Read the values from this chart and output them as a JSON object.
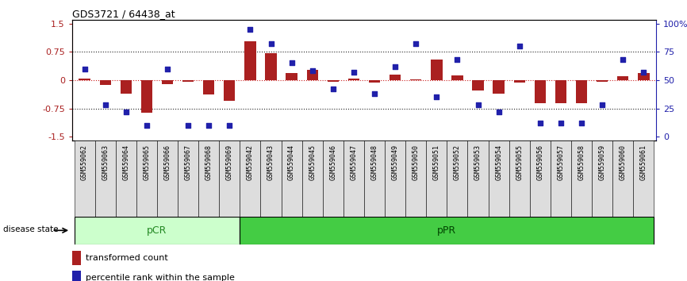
{
  "title": "GDS3721 / 64438_at",
  "samples": [
    "GSM559062",
    "GSM559063",
    "GSM559064",
    "GSM559065",
    "GSM559066",
    "GSM559067",
    "GSM559068",
    "GSM559069",
    "GSM559042",
    "GSM559043",
    "GSM559044",
    "GSM559045",
    "GSM559046",
    "GSM559047",
    "GSM559048",
    "GSM559049",
    "GSM559050",
    "GSM559051",
    "GSM559052",
    "GSM559053",
    "GSM559054",
    "GSM559055",
    "GSM559056",
    "GSM559057",
    "GSM559058",
    "GSM559059",
    "GSM559060",
    "GSM559061"
  ],
  "bar_values": [
    0.05,
    -0.13,
    -0.35,
    -0.87,
    -0.1,
    -0.04,
    -0.38,
    -0.55,
    1.02,
    0.72,
    0.18,
    0.28,
    -0.04,
    0.04,
    -0.07,
    0.14,
    0.02,
    0.55,
    0.12,
    -0.28,
    -0.35,
    -0.06,
    -0.62,
    -0.62,
    -0.62,
    -0.05,
    0.1,
    0.18
  ],
  "dot_values": [
    60,
    28,
    22,
    10,
    60,
    10,
    10,
    10,
    95,
    82,
    65,
    58,
    42,
    57,
    38,
    62,
    82,
    35,
    68,
    28,
    22,
    80,
    12,
    12,
    12,
    28,
    68,
    57
  ],
  "pCR_count": 8,
  "pCR_label": "pCR",
  "pPR_label": "pPR",
  "ylim": [
    -1.6,
    1.6
  ],
  "yticks_left": [
    -1.5,
    -0.75,
    0,
    0.75,
    1.5
  ],
  "yticks_right": [
    0,
    25,
    50,
    75,
    100
  ],
  "bar_color": "#aa2020",
  "dot_color": "#2020aa",
  "zero_line_color": "#cc2020",
  "hline_color": "#222222",
  "pCR_facecolor": "#ccffcc",
  "pPR_facecolor": "#44cc44",
  "label_bar": "transformed count",
  "label_dot": "percentile rank within the sample",
  "disease_state_label": "disease state",
  "xticklabel_bg": "#dddddd"
}
